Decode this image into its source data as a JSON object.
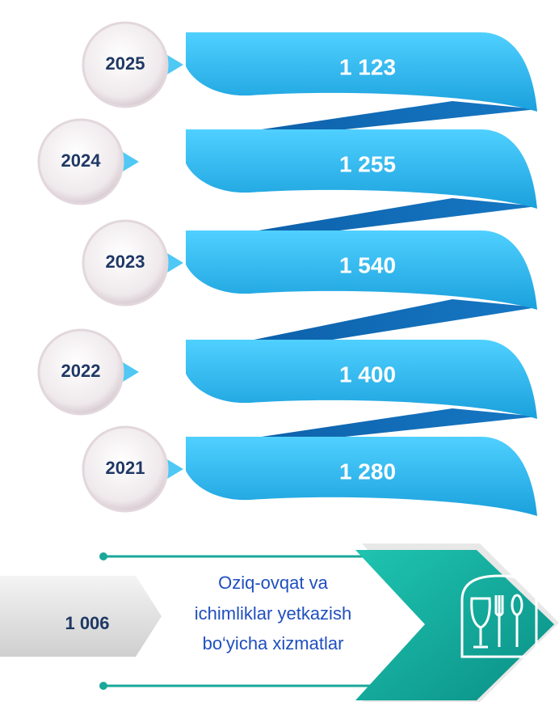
{
  "items": [
    {
      "year": "2025",
      "value": "1 123"
    },
    {
      "year": "2024",
      "value": "1 255"
    },
    {
      "year": "2023",
      "value": "1 540"
    },
    {
      "year": "2022",
      "value": "1 400"
    },
    {
      "year": "2021",
      "value": "1 280"
    }
  ],
  "footer": {
    "value": "1 006",
    "lines": [
      "Oziq-ovqat va",
      "ichimliklar yetkazish",
      "bo‘yicha xizmatlar"
    ]
  }
}
